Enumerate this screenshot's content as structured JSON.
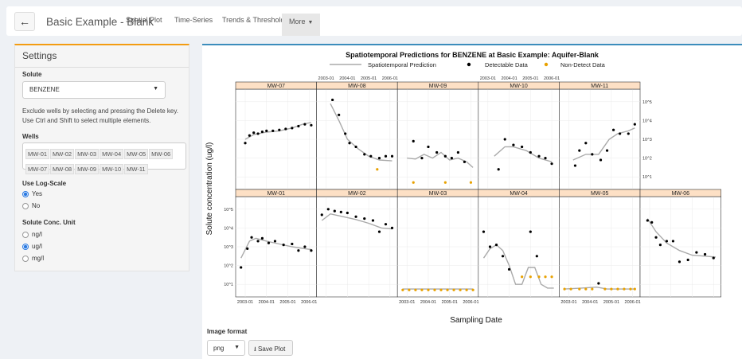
{
  "nav": {
    "back_icon": "arrow-left-icon",
    "title": "Basic Example - Blank",
    "tabs": [
      "Spatial Plot",
      "Time-Series",
      "Trends & Thresholds",
      "More"
    ]
  },
  "sidebar": {
    "title": "Settings",
    "solute_label": "Solute",
    "solute_value": "BENZENE",
    "help_text": "Exclude wells by selecting and pressing the Delete key. Use Ctrl and Shift to select multiple elements.",
    "wells_label": "Wells",
    "wells": [
      "MW-01",
      "MW-02",
      "MW-03",
      "MW-04",
      "MW-05",
      "MW-06",
      "MW-07",
      "MW-08",
      "MW-09",
      "MW-10",
      "MW-11"
    ],
    "log_label": "Use Log-Scale",
    "log_options": [
      {
        "label": "Yes",
        "selected": true
      },
      {
        "label": "No",
        "selected": false
      }
    ],
    "unit_label": "Solute Conc. Unit",
    "unit_options": [
      {
        "label": "ng/l",
        "selected": false
      },
      {
        "label": "ug/l",
        "selected": true
      },
      {
        "label": "mg/l",
        "selected": false
      }
    ]
  },
  "chart_data": {
    "type": "scatter",
    "title": "Spatiotemporal Predictions for BENZENE at Basic Example: Aquifer-Blank",
    "legend": [
      "Spatiotemporal Prediction",
      "Detectable Data",
      "Non-Detect Data"
    ],
    "legend_placement": "top",
    "xlabel": "Sampling Date",
    "ylabel": "Solute concentration (ug/l)",
    "x_ticks": [
      "2003-01",
      "2004-01",
      "2005-01",
      "2006-01"
    ],
    "y_ticks": [
      "10^1",
      "10^2",
      "10^3",
      "10^4",
      "10^5"
    ],
    "colors": {
      "detect": "#000000",
      "nondetect": "#e8a100",
      "prediction": "#aaaaaa",
      "strip": "#fde0c5"
    },
    "y_scale": "log10",
    "x_range": [
      2002.7,
      2006.2
    ],
    "y_range_log10": [
      0.5,
      5.5
    ],
    "panels": [
      {
        "name": "MW-07",
        "row": 0,
        "col": 0,
        "detect": [
          [
            2003.0,
            2.8
          ],
          [
            2003.2,
            3.2
          ],
          [
            2003.4,
            3.35
          ],
          [
            2003.6,
            3.3
          ],
          [
            2003.8,
            3.4
          ],
          [
            2004.0,
            3.45
          ],
          [
            2004.3,
            3.45
          ],
          [
            2004.6,
            3.5
          ],
          [
            2004.9,
            3.55
          ],
          [
            2005.2,
            3.6
          ],
          [
            2005.5,
            3.7
          ],
          [
            2005.8,
            3.8
          ],
          [
            2006.1,
            3.75
          ]
        ],
        "nondetect": [],
        "pred": [
          [
            2003.0,
            3.0
          ],
          [
            2003.4,
            3.25
          ],
          [
            2004.0,
            3.38
          ],
          [
            2004.6,
            3.45
          ],
          [
            2005.2,
            3.6
          ],
          [
            2005.7,
            3.8
          ],
          [
            2006.1,
            3.9
          ]
        ]
      },
      {
        "name": "MW-08",
        "row": 0,
        "col": 1,
        "detect": [
          [
            2003.3,
            5.1
          ],
          [
            2003.6,
            4.3
          ],
          [
            2003.9,
            3.3
          ],
          [
            2004.1,
            2.8
          ],
          [
            2004.4,
            2.6
          ],
          [
            2004.8,
            2.2
          ],
          [
            2005.1,
            2.1
          ],
          [
            2005.5,
            2.0
          ],
          [
            2005.8,
            2.1
          ],
          [
            2006.1,
            2.1
          ]
        ],
        "nondetect": [
          [
            2005.4,
            1.4
          ]
        ],
        "pred": [
          [
            2003.2,
            4.9
          ],
          [
            2003.6,
            4.0
          ],
          [
            2004.0,
            3.0
          ],
          [
            2004.5,
            2.5
          ],
          [
            2005.0,
            2.1
          ],
          [
            2005.5,
            1.9
          ],
          [
            2006.1,
            1.85
          ]
        ]
      },
      {
        "name": "MW-09",
        "row": 0,
        "col": 2,
        "detect": [
          [
            2003.3,
            2.9
          ],
          [
            2003.7,
            2.0
          ],
          [
            2004.0,
            2.6
          ],
          [
            2004.4,
            2.3
          ],
          [
            2004.8,
            2.1
          ],
          [
            2005.1,
            2.0
          ],
          [
            2005.4,
            2.3
          ],
          [
            2005.7,
            1.8
          ]
        ],
        "nondetect": [
          [
            2003.3,
            0.7
          ],
          [
            2004.8,
            0.7
          ],
          [
            2006.0,
            0.7
          ]
        ],
        "pred": [
          [
            2003.0,
            2.0
          ],
          [
            2003.4,
            1.95
          ],
          [
            2003.8,
            2.2
          ],
          [
            2004.2,
            2.0
          ],
          [
            2004.6,
            2.3
          ],
          [
            2005.0,
            1.9
          ],
          [
            2005.4,
            2.0
          ],
          [
            2005.8,
            1.8
          ],
          [
            2006.1,
            1.5
          ]
        ]
      },
      {
        "name": "MW-10",
        "row": 0,
        "col": 3,
        "detect": [
          [
            2003.5,
            1.4
          ],
          [
            2003.8,
            3.0
          ],
          [
            2004.2,
            2.7
          ],
          [
            2004.6,
            2.6
          ],
          [
            2005.0,
            2.3
          ],
          [
            2005.4,
            2.1
          ],
          [
            2005.7,
            2.0
          ],
          [
            2006.0,
            1.7
          ]
        ],
        "nondetect": [],
        "pred": [
          [
            2003.3,
            2.1
          ],
          [
            2003.8,
            2.6
          ],
          [
            2004.2,
            2.6
          ],
          [
            2004.8,
            2.4
          ],
          [
            2005.4,
            2.0
          ],
          [
            2006.0,
            1.8
          ]
        ]
      },
      {
        "name": "MW-11",
        "row": 0,
        "col": 4,
        "detect": [
          [
            2003.3,
            1.6
          ],
          [
            2003.5,
            2.4
          ],
          [
            2003.8,
            2.8
          ],
          [
            2004.1,
            2.2
          ],
          [
            2004.5,
            1.9
          ],
          [
            2004.8,
            2.4
          ],
          [
            2005.1,
            3.5
          ],
          [
            2005.4,
            3.3
          ],
          [
            2005.8,
            3.3
          ],
          [
            2006.1,
            3.8
          ]
        ],
        "nondetect": [],
        "pred": [
          [
            2003.2,
            1.9
          ],
          [
            2003.8,
            2.2
          ],
          [
            2004.4,
            2.2
          ],
          [
            2004.9,
            3.0
          ],
          [
            2005.3,
            3.3
          ],
          [
            2005.8,
            3.45
          ],
          [
            2006.1,
            3.6
          ]
        ]
      },
      {
        "name": "MW-01",
        "row": 1,
        "col": 0,
        "detect": [
          [
            2002.8,
            1.9
          ],
          [
            2003.1,
            2.9
          ],
          [
            2003.3,
            3.5
          ],
          [
            2003.6,
            3.3
          ],
          [
            2003.8,
            3.45
          ],
          [
            2004.1,
            3.2
          ],
          [
            2004.4,
            3.3
          ],
          [
            2004.8,
            3.1
          ],
          [
            2005.2,
            3.15
          ],
          [
            2005.5,
            2.8
          ],
          [
            2005.8,
            3.0
          ],
          [
            2006.1,
            2.8
          ]
        ],
        "nondetect": [],
        "pred": [
          [
            2002.8,
            2.4
          ],
          [
            2003.2,
            3.3
          ],
          [
            2003.5,
            3.45
          ],
          [
            2004.0,
            3.3
          ],
          [
            2004.6,
            3.15
          ],
          [
            2005.2,
            3.0
          ],
          [
            2005.8,
            2.9
          ],
          [
            2006.1,
            2.85
          ]
        ]
      },
      {
        "name": "MW-02",
        "row": 1,
        "col": 1,
        "detect": [
          [
            2002.8,
            4.7
          ],
          [
            2003.1,
            5.0
          ],
          [
            2003.4,
            4.9
          ],
          [
            2003.7,
            4.85
          ],
          [
            2004.0,
            4.8
          ],
          [
            2004.4,
            4.6
          ],
          [
            2004.8,
            4.5
          ],
          [
            2005.2,
            4.4
          ],
          [
            2005.5,
            3.8
          ],
          [
            2005.8,
            4.2
          ],
          [
            2006.1,
            4.0
          ]
        ],
        "nondetect": [],
        "pred": [
          [
            2002.8,
            4.4
          ],
          [
            2003.2,
            4.75
          ],
          [
            2003.8,
            4.6
          ],
          [
            2004.4,
            4.45
          ],
          [
            2005.0,
            4.25
          ],
          [
            2005.6,
            4.0
          ],
          [
            2006.1,
            3.95
          ]
        ]
      },
      {
        "name": "MW-03",
        "row": 1,
        "col": 2,
        "detect": [],
        "nondetect": [
          [
            2002.8,
            0.7
          ],
          [
            2003.1,
            0.7
          ],
          [
            2003.4,
            0.7
          ],
          [
            2003.7,
            0.7
          ],
          [
            2004.0,
            0.7
          ],
          [
            2004.3,
            0.7
          ],
          [
            2004.6,
            0.7
          ],
          [
            2004.9,
            0.7
          ],
          [
            2005.2,
            0.7
          ],
          [
            2005.5,
            0.7
          ],
          [
            2005.8,
            0.7
          ],
          [
            2006.1,
            0.7
          ]
        ],
        "pred": [
          [
            2002.8,
            0.75
          ],
          [
            2004.0,
            0.75
          ],
          [
            2005.0,
            0.75
          ],
          [
            2006.1,
            0.75
          ]
        ]
      },
      {
        "name": "MW-04",
        "row": 1,
        "col": 3,
        "detect": [
          [
            2002.8,
            3.8
          ],
          [
            2003.1,
            3.0
          ],
          [
            2003.4,
            3.1
          ],
          [
            2003.7,
            2.5
          ],
          [
            2004.0,
            1.8
          ],
          [
            2005.0,
            3.8
          ],
          [
            2005.3,
            2.5
          ]
        ],
        "nondetect": [
          [
            2004.6,
            1.4
          ],
          [
            2005.0,
            1.4
          ],
          [
            2005.4,
            1.4
          ],
          [
            2005.7,
            1.4
          ],
          [
            2006.0,
            1.4
          ]
        ],
        "pred": [
          [
            2002.8,
            2.4
          ],
          [
            2003.1,
            2.9
          ],
          [
            2003.4,
            3.1
          ],
          [
            2003.7,
            2.8
          ],
          [
            2004.0,
            2.0
          ],
          [
            2004.3,
            1.0
          ],
          [
            2004.6,
            1.0
          ],
          [
            2004.9,
            1.9
          ],
          [
            2005.2,
            1.9
          ],
          [
            2005.5,
            1.0
          ],
          [
            2005.8,
            0.8
          ],
          [
            2006.1,
            0.8
          ]
        ]
      },
      {
        "name": "MW-05",
        "row": 1,
        "col": 4,
        "detect": [
          [
            2004.4,
            1.05
          ]
        ],
        "nondetect": [
          [
            2002.8,
            0.75
          ],
          [
            2003.1,
            0.75
          ],
          [
            2003.5,
            0.75
          ],
          [
            2003.8,
            0.75
          ],
          [
            2004.1,
            0.75
          ],
          [
            2004.7,
            0.75
          ],
          [
            2005.0,
            0.75
          ],
          [
            2005.3,
            0.75
          ],
          [
            2005.6,
            0.75
          ],
          [
            2005.9,
            0.75
          ],
          [
            2006.1,
            0.75
          ]
        ],
        "pred": [
          [
            2002.8,
            0.75
          ],
          [
            2003.6,
            0.8
          ],
          [
            2004.3,
            0.85
          ],
          [
            2004.8,
            0.75
          ],
          [
            2006.1,
            0.75
          ]
        ]
      },
      {
        "name": "MW-06",
        "row": 1,
        "col": 5,
        "detect": [
          [
            2002.9,
            4.4
          ],
          [
            2003.1,
            4.3
          ],
          [
            2003.3,
            3.5
          ],
          [
            2003.5,
            3.1
          ],
          [
            2003.8,
            3.3
          ],
          [
            2004.1,
            3.3
          ],
          [
            2004.4,
            2.2
          ],
          [
            2004.8,
            2.3
          ],
          [
            2005.2,
            2.7
          ],
          [
            2005.6,
            2.6
          ],
          [
            2006.0,
            2.4
          ]
        ],
        "nondetect": [],
        "pred": [
          [
            2002.9,
            4.5
          ],
          [
            2003.3,
            3.8
          ],
          [
            2003.8,
            3.2
          ],
          [
            2004.4,
            2.8
          ],
          [
            2005.0,
            2.55
          ],
          [
            2005.6,
            2.5
          ],
          [
            2006.1,
            2.45
          ]
        ]
      }
    ]
  },
  "export": {
    "format_label": "Image format",
    "format_value": "png",
    "save_label": "Save Plot",
    "save_icon": "download-icon"
  }
}
